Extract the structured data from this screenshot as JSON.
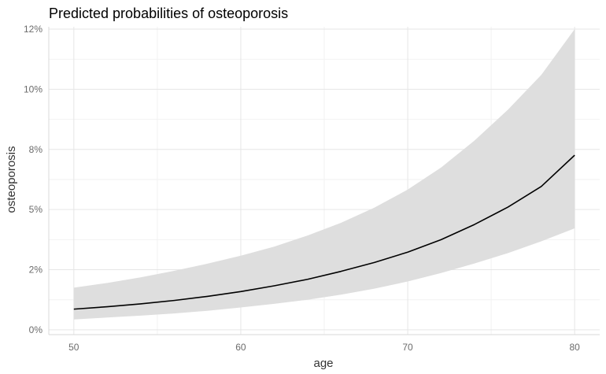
{
  "chart_data": {
    "type": "line",
    "title": "Predicted probabilities of osteoporosis",
    "xlabel": "age",
    "ylabel": "osteoporosis",
    "xlim": [
      48.5,
      81.5
    ],
    "ylim": [
      -0.002,
      0.126
    ],
    "x_ticks": [
      50,
      60,
      70,
      80
    ],
    "x_tick_labels": [
      "50",
      "60",
      "70",
      "80"
    ],
    "y_ticks": [
      0,
      0.025,
      0.05,
      0.075,
      0.1,
      0.125
    ],
    "y_tick_labels": [
      "0%",
      "2%",
      "5%",
      "8%",
      "10%",
      "12%"
    ],
    "grid": true,
    "legend": "none",
    "colors": {
      "line": "#000000",
      "band": "#dedede",
      "grid": "#e6e6e6"
    },
    "series": [
      {
        "x": [
          50,
          52,
          54,
          56,
          58,
          60,
          62,
          64,
          66,
          68,
          70,
          72,
          74,
          76,
          78,
          80
        ],
        "values": [
          0.0086,
          0.0096,
          0.0108,
          0.0122,
          0.0139,
          0.0159,
          0.0183,
          0.021,
          0.0243,
          0.028,
          0.0323,
          0.0375,
          0.0438,
          0.051,
          0.0596,
          0.0726
        ],
        "ci_lower": [
          0.0043,
          0.0051,
          0.0059,
          0.0068,
          0.0079,
          0.0093,
          0.0108,
          0.0125,
          0.0146,
          0.0171,
          0.0201,
          0.0236,
          0.0276,
          0.0319,
          0.0368,
          0.0422
        ],
        "ci_upper": [
          0.0175,
          0.0195,
          0.0218,
          0.0245,
          0.0275,
          0.0308,
          0.0346,
          0.0392,
          0.0445,
          0.0508,
          0.0583,
          0.0675,
          0.0787,
          0.0915,
          0.106,
          0.125
        ]
      }
    ]
  }
}
